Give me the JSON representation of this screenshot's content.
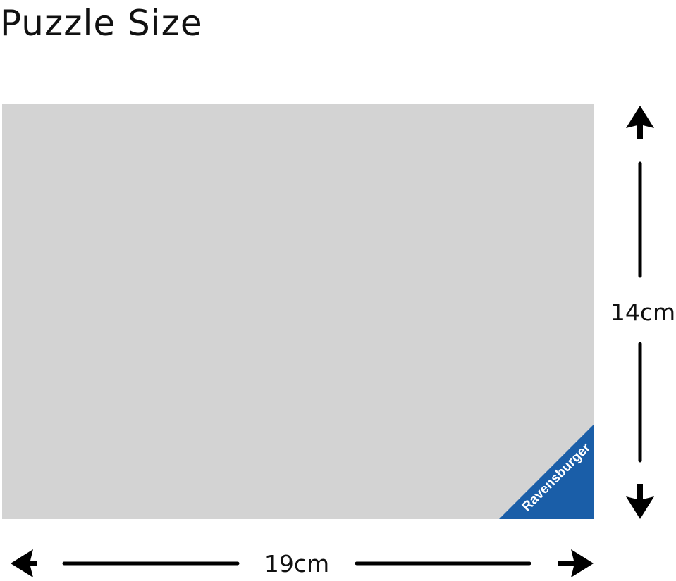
{
  "title": "Puzzle Size",
  "height_label": "14cm",
  "width_label": "19cm",
  "brand": "Ravensburger",
  "colors": {
    "puzzle": "#d3d3d3",
    "brand": "#1a5ea8",
    "arrows": "#000000"
  }
}
